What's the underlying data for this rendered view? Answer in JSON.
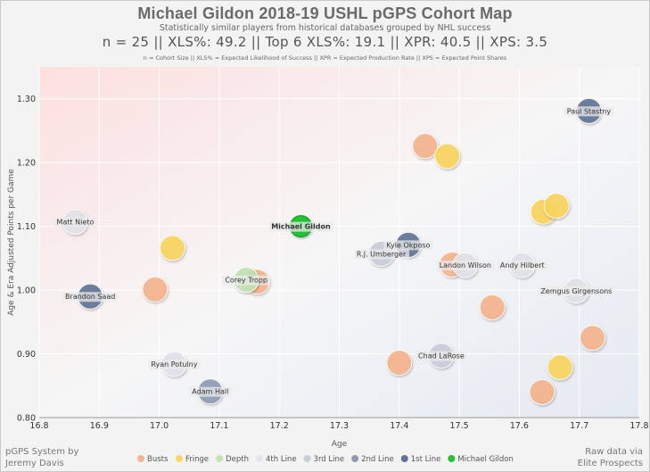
{
  "header": {
    "title": "Michael Gildon 2018-19 USHL pGPS Cohort Map",
    "subtitle": "Statistically similar players from historical databases grouped by NHL success",
    "stats": "n = 25  ||  XLS%: 49.2  ||  Top 6 XLS%: 19.1  ||  XPR: 40.5  ||  XPS: 3.5",
    "footnote": "n = Cohort Size || XLS% = Expected Likelihood of Success || XPR = Expected Production Rate || XPS = Expected Point Shares"
  },
  "credits": {
    "left_line1": "pGPS System by",
    "left_line2": "Jeremy Davis",
    "right_line1": "Raw data via",
    "right_line2": "Elite Prospects"
  },
  "colors": {
    "Busts": "#f6b48b",
    "Fringe": "#fbd55c",
    "Depth": "#c3e3b5",
    "4th Line": "#e3e4ea",
    "3rd Line": "#c9cedc",
    "2nd Line": "#8e9ab3",
    "1st Line": "#5f7396",
    "Michael Gildon": "#22c232"
  },
  "chart_data": {
    "type": "scatter",
    "xlabel": "Age",
    "ylabel": "Age & Era Adjusted Points per Game",
    "xlim": [
      16.8,
      17.8
    ],
    "ylim": [
      0.8,
      1.35
    ],
    "x_ticks": [
      "16.8",
      "16.9",
      "17.0",
      "17.1",
      "17.2",
      "17.3",
      "17.4",
      "17.5",
      "17.6",
      "17.7",
      "17.8"
    ],
    "y_ticks": [
      "0.80",
      "0.90",
      "1.00",
      "1.10",
      "1.20",
      "1.30"
    ],
    "grid": true,
    "legend_position": "bottom",
    "legend": [
      "Busts",
      "Fringe",
      "Depth",
      "4th Line",
      "3rd Line",
      "2nd Line",
      "1st Line",
      "Michael Gildon"
    ],
    "points": [
      {
        "x": 17.443,
        "y": 1.226,
        "group": "Busts",
        "label": ""
      },
      {
        "x": 16.993,
        "y": 1.001,
        "group": "Busts",
        "label": ""
      },
      {
        "x": 17.163,
        "y": 1.013,
        "group": "Busts",
        "label": ""
      },
      {
        "x": 17.488,
        "y": 1.04,
        "group": "Busts",
        "label": ""
      },
      {
        "x": 17.555,
        "y": 0.973,
        "group": "Busts",
        "label": ""
      },
      {
        "x": 17.4,
        "y": 0.886,
        "group": "Busts",
        "label": ""
      },
      {
        "x": 17.638,
        "y": 0.84,
        "group": "Busts",
        "label": ""
      },
      {
        "x": 17.722,
        "y": 0.925,
        "group": "Busts",
        "label": ""
      },
      {
        "x": 17.48,
        "y": 1.21,
        "group": "Fringe",
        "label": ""
      },
      {
        "x": 17.022,
        "y": 1.066,
        "group": "Fringe",
        "label": ""
      },
      {
        "x": 17.64,
        "y": 1.123,
        "group": "Fringe",
        "label": ""
      },
      {
        "x": 17.662,
        "y": 1.132,
        "group": "Fringe",
        "label": ""
      },
      {
        "x": 17.668,
        "y": 0.879,
        "group": "Fringe",
        "label": ""
      },
      {
        "x": 17.145,
        "y": 1.016,
        "group": "Depth",
        "label": "Corey Tropp"
      },
      {
        "x": 16.86,
        "y": 1.107,
        "group": "4th Line",
        "label": "Matt Nieto"
      },
      {
        "x": 17.51,
        "y": 1.039,
        "group": "4th Line",
        "label": "Landon Wilson"
      },
      {
        "x": 17.605,
        "y": 1.039,
        "group": "4th Line",
        "label": "Andy Hilbert"
      },
      {
        "x": 17.695,
        "y": 0.999,
        "group": "4th Line",
        "label": "Zemgus Girgensons"
      },
      {
        "x": 17.025,
        "y": 0.884,
        "group": "4th Line",
        "label": "Ryan Potulny"
      },
      {
        "x": 17.37,
        "y": 1.057,
        "group": "3rd Line",
        "label": "R.J. Umberger"
      },
      {
        "x": 17.47,
        "y": 0.897,
        "group": "3rd Line",
        "label": "Chad LaRose"
      },
      {
        "x": 17.085,
        "y": 0.841,
        "group": "2nd Line",
        "label": "Adam Hall"
      },
      {
        "x": 17.716,
        "y": 1.281,
        "group": "1st Line",
        "label": "Paul Stastny"
      },
      {
        "x": 17.415,
        "y": 1.071,
        "group": "1st Line",
        "label": "Kyle Okposo"
      },
      {
        "x": 16.885,
        "y": 0.99,
        "group": "1st Line",
        "label": "Brandon Saad"
      },
      {
        "x": 17.236,
        "y": 1.1,
        "group": "Michael Gildon",
        "label": "Michael Gildon"
      }
    ]
  }
}
